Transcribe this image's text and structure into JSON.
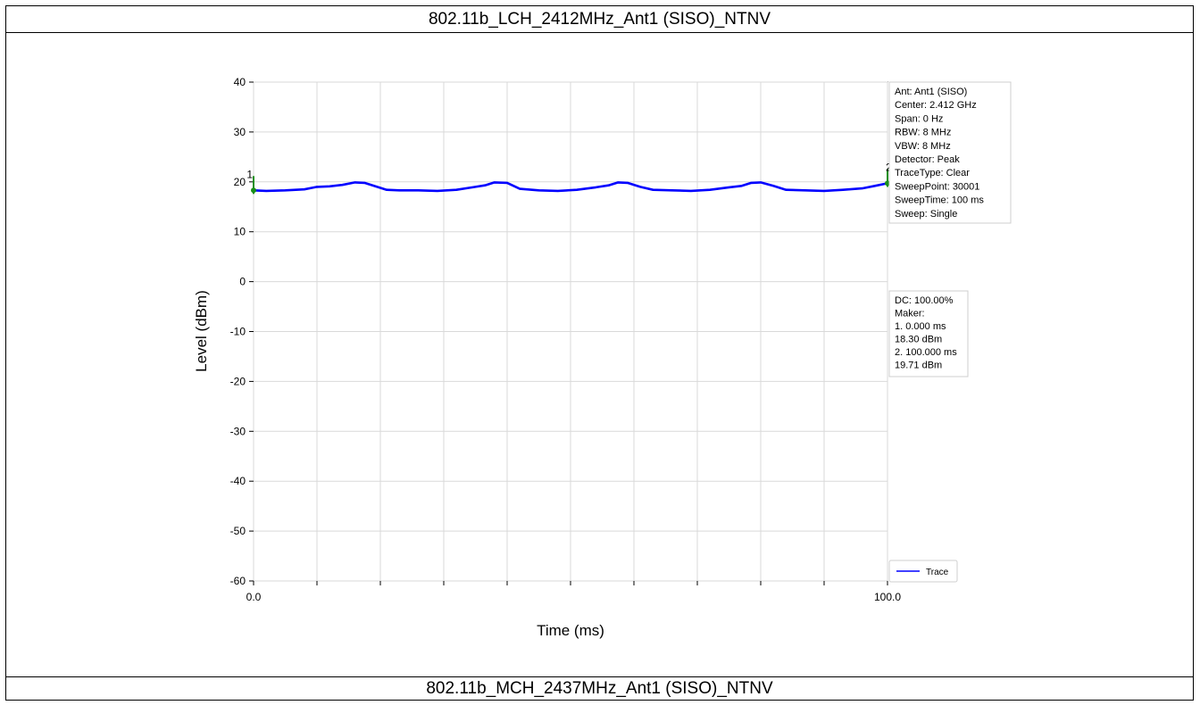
{
  "header": {
    "title": "802.11b_LCH_2412MHz_Ant1 (SISO)_NTNV"
  },
  "footer": {
    "title": "802.11b_MCH_2437MHz_Ant1 (SISO)_NTNV"
  },
  "info_box": {
    "lines": [
      "Ant: Ant1 (SISO)",
      "Center: 2.412 GHz",
      "Span: 0 Hz",
      "RBW: 8 MHz",
      "VBW: 8 MHz",
      "Detector: Peak",
      "TraceType: Clear",
      "SweepPoint: 30001",
      "SweepTime: 100 ms",
      "Sweep: Single"
    ]
  },
  "marker_box": {
    "lines": [
      "DC: 100.00%",
      "Maker:",
      "1. 0.000 ms",
      "    18.30 dBm",
      "2. 100.000 ms",
      "    19.71 dBm"
    ]
  },
  "chart_data": {
    "type": "line",
    "title": "",
    "xlabel": "Time (ms)",
    "ylabel": "Level (dBm)",
    "xlim": [
      0,
      100
    ],
    "ylim": [
      -60,
      40
    ],
    "x_tick_labels": [
      "0.0",
      "100.0"
    ],
    "y_ticks": [
      40,
      30,
      20,
      10,
      0,
      -10,
      -20,
      -30,
      -40,
      -50,
      -60
    ],
    "grid": true,
    "legend": {
      "placement": "bottom-right",
      "entries": [
        "Trace"
      ]
    },
    "series": [
      {
        "name": "Trace",
        "color": "#0000ff",
        "x": [
          0,
          2,
          5,
          8,
          10,
          12,
          14,
          16,
          17.5,
          19,
          21,
          23,
          26,
          29,
          32,
          35,
          36.5,
          38,
          40,
          42,
          45,
          48,
          51,
          54,
          56,
          57.5,
          59,
          61,
          63,
          66,
          69,
          72,
          75,
          77,
          78.5,
          80,
          82,
          84,
          87,
          90,
          93,
          96,
          98,
          100
        ],
        "values": [
          18.3,
          18.2,
          18.3,
          18.5,
          19.0,
          19.1,
          19.4,
          19.9,
          19.8,
          19.2,
          18.4,
          18.3,
          18.3,
          18.2,
          18.4,
          19.0,
          19.3,
          19.9,
          19.8,
          18.6,
          18.3,
          18.2,
          18.4,
          18.9,
          19.3,
          19.9,
          19.8,
          19.0,
          18.4,
          18.3,
          18.2,
          18.4,
          18.9,
          19.2,
          19.8,
          19.9,
          19.2,
          18.4,
          18.3,
          18.2,
          18.4,
          18.7,
          19.2,
          19.71
        ]
      }
    ],
    "markers": [
      {
        "label": "1",
        "x": 0,
        "y": 18.3
      },
      {
        "label": "2",
        "x": 100,
        "y": 19.71
      }
    ]
  }
}
